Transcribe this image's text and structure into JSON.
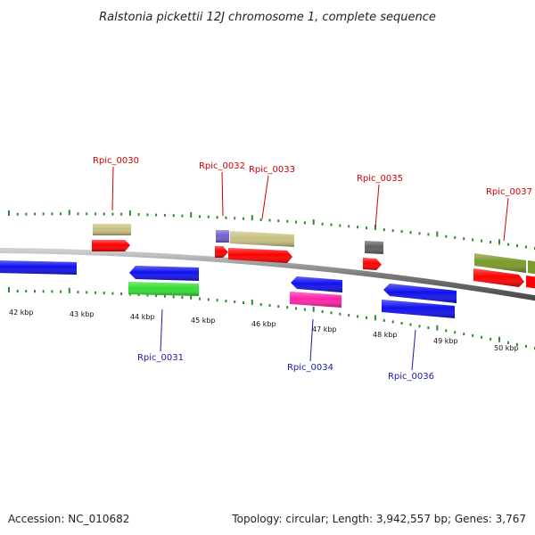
{
  "title": "Ralstonia pickettii 12J chromosome 1, complete sequence",
  "footer": {
    "accession": "Accession: NC_010682",
    "topology": "Topology: circular; Length: 3,942,557 bp; Genes: 3,767"
  },
  "colors": {
    "forward_label": "#cc0000",
    "reverse_label": "#1a1aa6",
    "tick": "#2e8b2e",
    "backbone": "#8a8a8a"
  },
  "kbp_labels": [
    "42 kbp",
    "43 kbp",
    "44 kbp",
    "45 kbp",
    "46 kbp",
    "47 kbp",
    "48 kbp",
    "49 kbp",
    "50 kbp"
  ],
  "gene_labels": {
    "g0030": "Rpic_0030",
    "g0031": "Rpic_0031",
    "g0032": "Rpic_0032",
    "g0033": "Rpic_0033",
    "g0034": "Rpic_0034",
    "g0035": "Rpic_0035",
    "g0036": "Rpic_0036",
    "g0037": "Rpic_0037"
  },
  "feature_colors": {
    "cds": "#ff0000",
    "blue": "#1010ee",
    "green": "#33dd33",
    "tan": "#c8c080",
    "purple": "#7060d0",
    "gray": "#606060",
    "olive": "#7a9a2a",
    "magenta": "#ff22aa"
  }
}
